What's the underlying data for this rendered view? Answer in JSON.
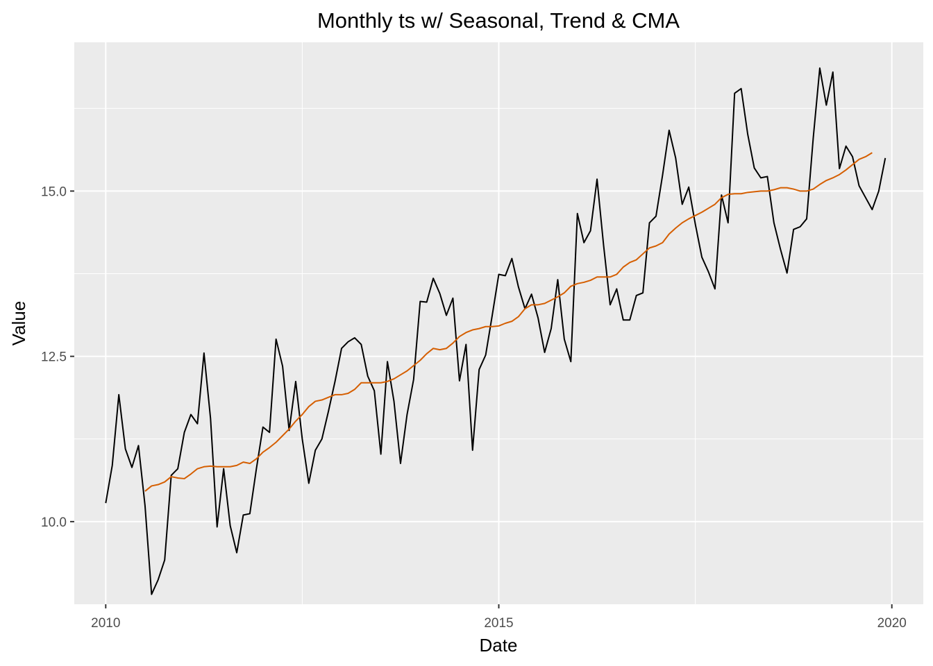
{
  "chart_data": {
    "type": "line",
    "title": "Monthly ts w/ Seasonal, Trend & CMA",
    "xlabel": "Date",
    "ylabel": "Value",
    "xlim": [
      2009.6,
      2020.4
    ],
    "ylim": [
      8.75,
      17.25
    ],
    "x_ticks": [
      2010,
      2015,
      2020
    ],
    "x_tick_labels": [
      "2010",
      "2015",
      "2020"
    ],
    "y_ticks": [
      10.0,
      12.5,
      15.0
    ],
    "y_tick_labels": [
      "10.0",
      "12.5",
      "15.0"
    ],
    "grid": true,
    "legend": "none",
    "series": [
      {
        "color": "#000000",
        "x_start": 2010,
        "x_step": 0.083333,
        "values": [
          10.28,
          10.85,
          11.92,
          11.1,
          10.82,
          11.15,
          10.24,
          8.9,
          9.12,
          9.42,
          10.7,
          10.8,
          11.35,
          11.62,
          11.48,
          12.55,
          11.56,
          9.92,
          10.8,
          9.94,
          9.53,
          10.1,
          10.12,
          10.8,
          11.43,
          11.35,
          12.76,
          12.35,
          11.38,
          12.12,
          11.25,
          10.58,
          11.08,
          11.25,
          11.67,
          12.12,
          12.62,
          12.72,
          12.78,
          12.68,
          12.2,
          11.98,
          11.02,
          12.42,
          11.82,
          10.88,
          11.62,
          12.15,
          13.33,
          13.32,
          13.68,
          13.45,
          13.12,
          13.38,
          12.13,
          12.68,
          11.08,
          12.3,
          12.52,
          13.12,
          13.74,
          13.72,
          13.98,
          13.55,
          13.22,
          13.44,
          13.08,
          12.56,
          12.92,
          13.66,
          12.76,
          12.42,
          14.66,
          14.22,
          14.4,
          15.18,
          14.18,
          13.28,
          13.52,
          13.05,
          13.05,
          13.42,
          13.46,
          14.52,
          14.62,
          15.24,
          15.92,
          15.5,
          14.8,
          15.06,
          14.5,
          14.0,
          13.78,
          13.52,
          14.94,
          14.52,
          16.48,
          16.55,
          15.86,
          15.35,
          15.2,
          15.22,
          14.52,
          14.12,
          13.76,
          14.42,
          14.46,
          14.58,
          15.8,
          16.86,
          16.3,
          16.8,
          15.34,
          15.68,
          15.52,
          15.08,
          14.9,
          14.72,
          15.0,
          15.5
        ]
      },
      {
        "color": "#D55E00",
        "x_start": 2010.5,
        "x_step": 0.083333,
        "values": [
          10.46,
          10.54,
          10.56,
          10.6,
          10.68,
          10.66,
          10.65,
          10.72,
          10.8,
          10.83,
          10.84,
          10.83,
          10.83,
          10.83,
          10.85,
          10.9,
          10.88,
          10.95,
          11.05,
          11.12,
          11.2,
          11.3,
          11.4,
          11.52,
          11.62,
          11.74,
          11.82,
          11.84,
          11.88,
          11.92,
          11.92,
          11.94,
          12.0,
          12.1,
          12.1,
          12.1,
          12.1,
          12.12,
          12.16,
          12.22,
          12.28,
          12.36,
          12.44,
          12.54,
          12.62,
          12.6,
          12.62,
          12.7,
          12.8,
          12.86,
          12.9,
          12.92,
          12.95,
          12.95,
          12.96,
          13.0,
          13.03,
          13.1,
          13.22,
          13.28,
          13.28,
          13.3,
          13.35,
          13.4,
          13.46,
          13.56,
          13.6,
          13.62,
          13.65,
          13.7,
          13.7,
          13.7,
          13.74,
          13.85,
          13.92,
          13.96,
          14.05,
          14.14,
          14.17,
          14.22,
          14.35,
          14.44,
          14.52,
          14.58,
          14.63,
          14.68,
          14.74,
          14.8,
          14.9,
          14.95,
          14.96,
          14.96,
          14.98,
          14.99,
          15.0,
          15.0,
          15.02,
          15.05,
          15.05,
          15.03,
          15.0,
          15.0,
          15.03,
          15.1,
          15.16,
          15.2,
          15.25,
          15.32,
          15.4,
          15.48,
          15.52,
          15.58
        ]
      }
    ]
  }
}
